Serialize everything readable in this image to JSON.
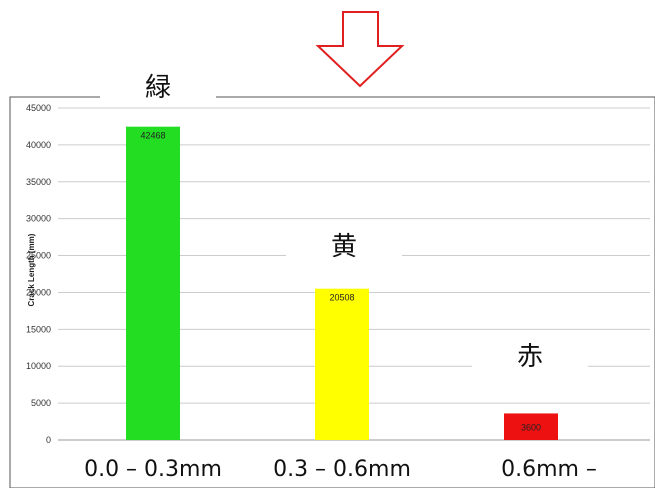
{
  "chart_data": {
    "type": "bar",
    "categories": [
      "0.0 – 0.3mm",
      "0.3 – 0.6mm",
      "0.6mm –"
    ],
    "values": [
      42468,
      20508,
      3600
    ],
    "colors": [
      "#22dd22",
      "#ffff00",
      "#ee1111"
    ],
    "data_labels": [
      "42468",
      "20508",
      "3600"
    ],
    "annotations": [
      "緑",
      "黄",
      "赤"
    ],
    "title": "",
    "xlabel": "",
    "ylabel": "Crack Length (mm)",
    "ylim": [
      0,
      45000
    ],
    "yticks": [
      0,
      5000,
      10000,
      15000,
      20000,
      25000,
      30000,
      35000,
      40000,
      45000
    ],
    "grid": true,
    "legend": "none"
  },
  "arrow": {
    "icon": "down-arrow-icon",
    "color": "#e02020"
  }
}
